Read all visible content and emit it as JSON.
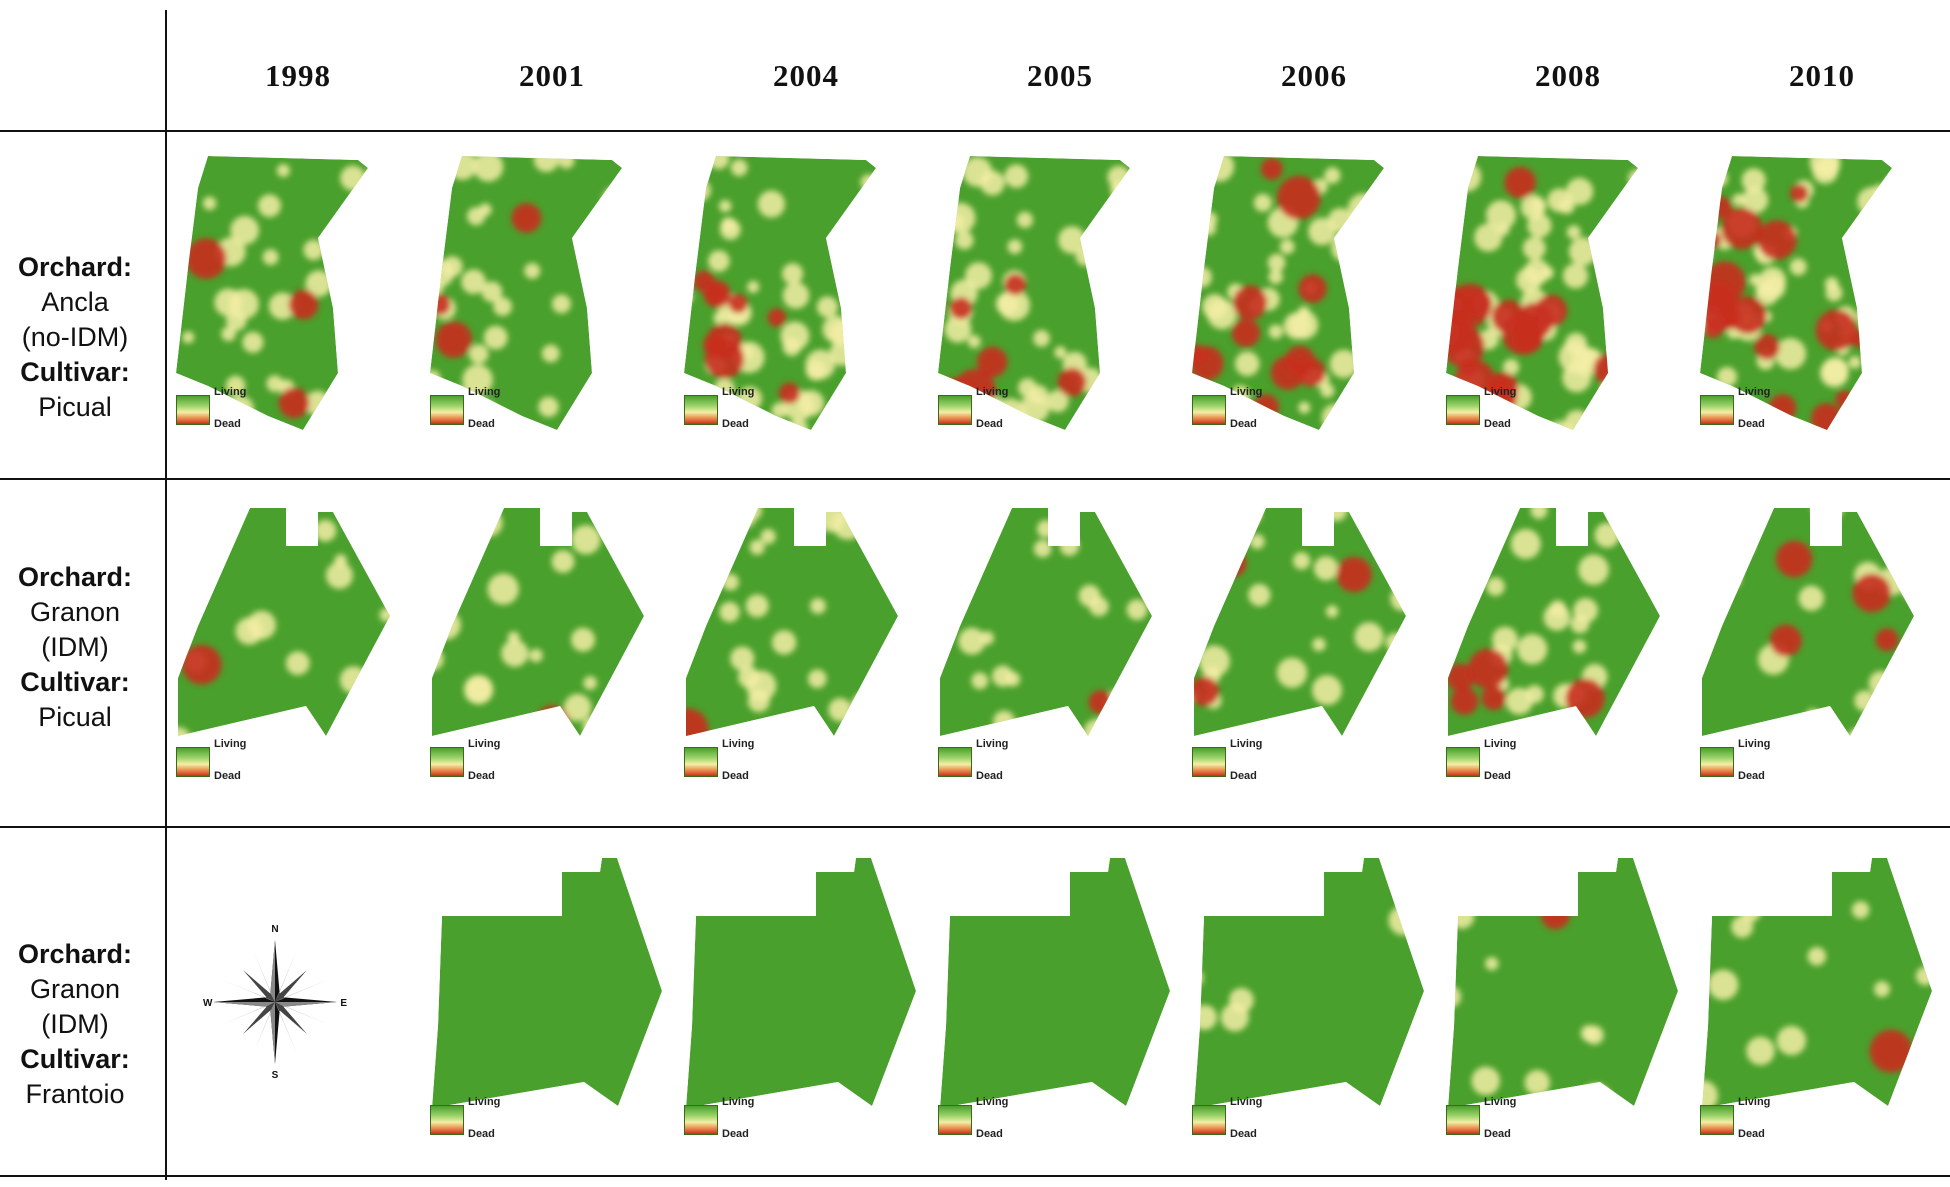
{
  "figure": {
    "years": [
      "1998",
      "2001",
      "2004",
      "2005",
      "2006",
      "2008",
      "2010"
    ],
    "legend": {
      "living": "Living",
      "dead": "Dead"
    },
    "colors": {
      "living": "#4aa02c",
      "transition": "#f3efa6",
      "dead": "#c82f1f"
    },
    "rows": [
      {
        "orchard_key": "Orchard:",
        "orchard_value": "Ancla",
        "orchard_type": "(no-IDM)",
        "cultivar_key": "Cultivar:",
        "cultivar_value": "Picual",
        "maps_present": [
          true,
          true,
          true,
          true,
          true,
          true,
          true
        ],
        "dead_level": [
          0.32,
          0.38,
          0.48,
          0.5,
          0.55,
          0.7,
          0.78
        ]
      },
      {
        "orchard_key": "Orchard:",
        "orchard_value": "Granon",
        "orchard_type": "(IDM)",
        "cultivar_key": "Cultivar:",
        "cultivar_value": "Picual",
        "maps_present": [
          true,
          true,
          true,
          true,
          true,
          true,
          true
        ],
        "dead_level": [
          0.15,
          0.22,
          0.3,
          0.32,
          0.33,
          0.35,
          0.36
        ]
      },
      {
        "orchard_key": "Orchard:",
        "orchard_value": "Granon",
        "orchard_type": "(IDM)",
        "cultivar_key": "Cultivar:",
        "cultivar_value": "Frantoio",
        "maps_present": [
          false,
          true,
          true,
          true,
          true,
          true,
          true
        ],
        "dead_level": [
          0,
          0,
          0,
          0,
          0.1,
          0.12,
          0.14
        ]
      }
    ],
    "compass": {
      "north": "N",
      "south": "S",
      "east": "E",
      "west": "W"
    }
  }
}
